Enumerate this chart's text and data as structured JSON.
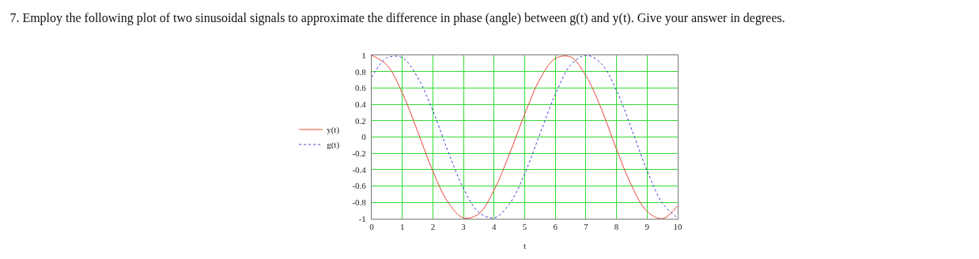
{
  "chart_data": {
    "type": "line",
    "title": "7. Employ the following plot of two sinusoidal signals to approximate the difference in phase (angle) between g(t) and y(t). Give your answer in degrees.",
    "xlabel": "t",
    "x": [
      0,
      0.5,
      1,
      1.5,
      2,
      2.5,
      3,
      3.5,
      4,
      4.5,
      5,
      5.5,
      6,
      6.5,
      7,
      7.5,
      8,
      8.5,
      9,
      9.5,
      10
    ],
    "series": [
      {
        "name": "y(t)",
        "color": "#e8443a",
        "line_style": "solid",
        "values": [
          1,
          0.88,
          0.54,
          0.07,
          -0.42,
          -0.8,
          -0.99,
          -0.94,
          -0.65,
          -0.21,
          0.28,
          0.71,
          0.96,
          0.98,
          0.75,
          0.35,
          -0.15,
          -0.6,
          -0.91,
          -1,
          -0.84
        ]
      },
      {
        "name": "g(t)",
        "color": "#3a3acc",
        "line_style": "dotted",
        "values": [
          0.73,
          0.97,
          0.97,
          0.73,
          0.32,
          -0.18,
          -0.63,
          -0.92,
          -0.99,
          -0.82,
          -0.45,
          0.04,
          0.52,
          0.88,
          1,
          0.9,
          0.57,
          0.09,
          -0.41,
          -0.81,
          -0.99
        ]
      }
    ],
    "xlim": [
      0,
      10
    ],
    "xticks": [
      0,
      1,
      2,
      3,
      4,
      5,
      6,
      7,
      8,
      9,
      10
    ],
    "ylim": [
      -1,
      1
    ],
    "yticks": [
      -1,
      -0.8,
      -0.6,
      -0.4,
      -0.2,
      0,
      0.2,
      0.4,
      0.6,
      0.8,
      1
    ],
    "grid": true,
    "legend": "left",
    "marker": "none"
  }
}
